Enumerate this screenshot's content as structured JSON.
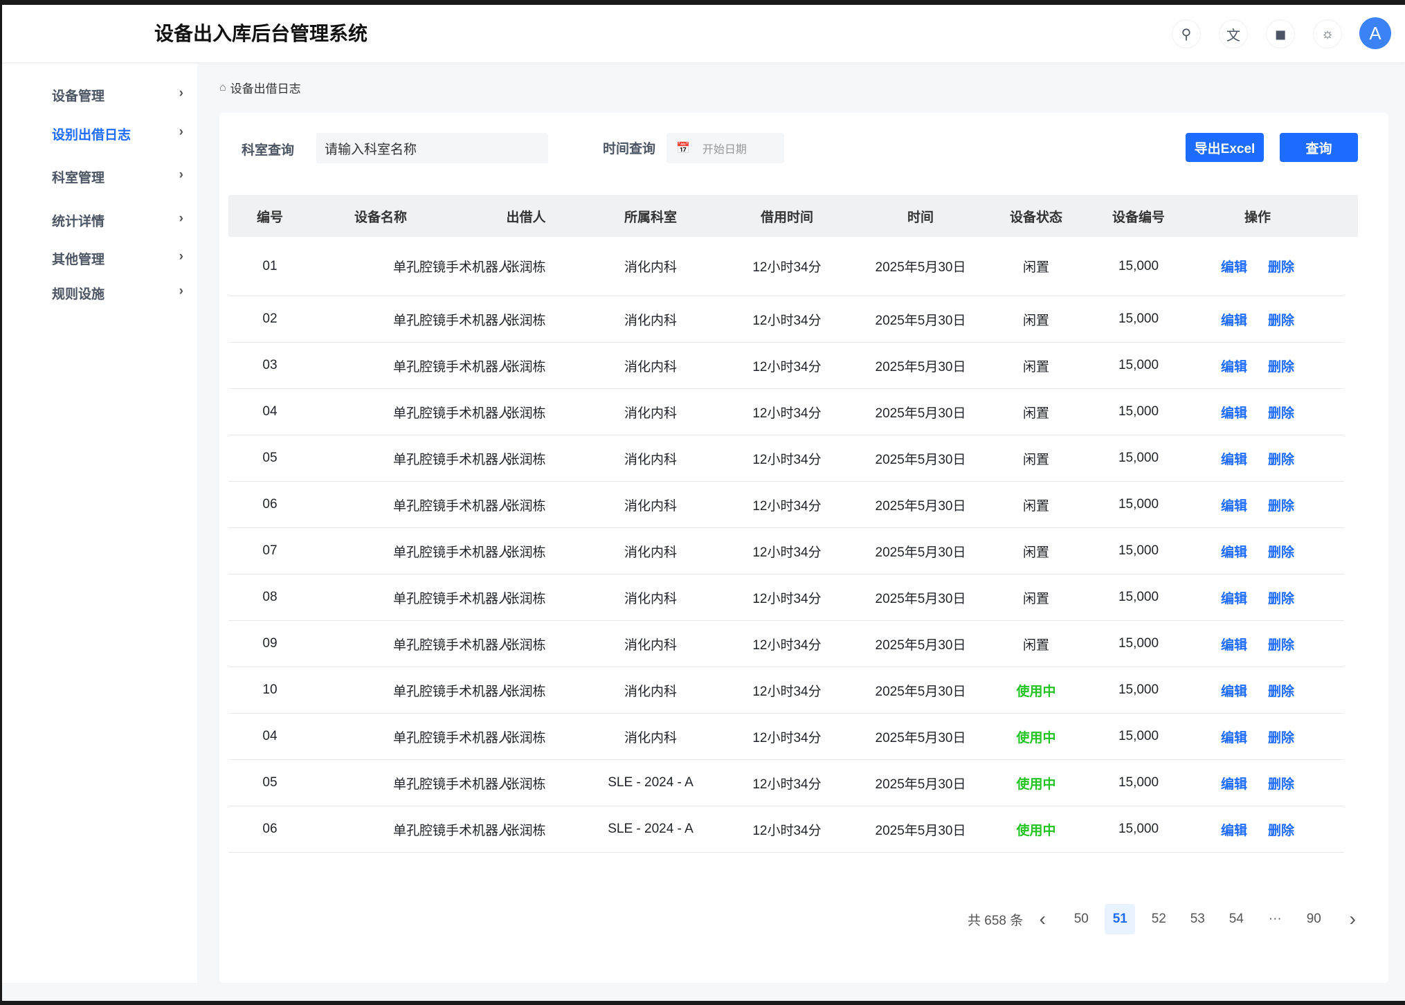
{
  "header": {
    "title": "设备出入库后台管理系统",
    "avatar": "A",
    "icons": [
      "search-icon",
      "translate-icon",
      "bell-icon",
      "sun-icon"
    ]
  },
  "sidebar": {
    "items": [
      {
        "label": "设备管理"
      },
      {
        "label": "设别出借日志",
        "active": true
      },
      {
        "label": "科室管理"
      },
      {
        "label": "统计详情"
      },
      {
        "label": "其他管理"
      },
      {
        "label": "规则设施"
      }
    ]
  },
  "breadcrumb": "设备出借日志",
  "filters": {
    "dept_label": "科室查询",
    "dept_value": "请输入科室名称",
    "time_label": "时间查询",
    "start_placeholder": "开始日期",
    "export": "导出Excel",
    "query": "查询"
  },
  "table": {
    "columns": [
      "编号",
      "设备名称",
      "出借人",
      "所属科室",
      "借用时间",
      "时间",
      "设备状态",
      "设备编号",
      "操作"
    ],
    "edit": "编辑",
    "delete": "删除",
    "rows": [
      [
        "01",
        "单孔腔镜手术机器人",
        "张润栋",
        "消化内科",
        "12小时34分",
        "2025年5月30日",
        "闲置",
        "15,000"
      ],
      [
        "02",
        "单孔腔镜手术机器人",
        "张润栋",
        "消化内科",
        "12小时34分",
        "2025年5月30日",
        "闲置",
        "15,000"
      ],
      [
        "03",
        "单孔腔镜手术机器人",
        "张润栋",
        "消化内科",
        "12小时34分",
        "2025年5月30日",
        "闲置",
        "15,000"
      ],
      [
        "04",
        "单孔腔镜手术机器人",
        "张润栋",
        "消化内科",
        "12小时34分",
        "2025年5月30日",
        "闲置",
        "15,000"
      ],
      [
        "05",
        "单孔腔镜手术机器人",
        "张润栋",
        "消化内科",
        "12小时34分",
        "2025年5月30日",
        "闲置",
        "15,000"
      ],
      [
        "06",
        "单孔腔镜手术机器人",
        "张润栋",
        "消化内科",
        "12小时34分",
        "2025年5月30日",
        "闲置",
        "15,000"
      ],
      [
        "07",
        "单孔腔镜手术机器人",
        "张润栋",
        "消化内科",
        "12小时34分",
        "2025年5月30日",
        "闲置",
        "15,000"
      ],
      [
        "08",
        "单孔腔镜手术机器人",
        "张润栋",
        "消化内科",
        "12小时34分",
        "2025年5月30日",
        "闲置",
        "15,000"
      ],
      [
        "09",
        "单孔腔镜手术机器人",
        "张润栋",
        "消化内科",
        "12小时34分",
        "2025年5月30日",
        "闲置",
        "15,000"
      ],
      [
        "10",
        "单孔腔镜手术机器人",
        "张润栋",
        "消化内科",
        "12小时34分",
        "2025年5月30日",
        "使用中",
        "15,000"
      ],
      [
        "04",
        "单孔腔镜手术机器人",
        "张润栋",
        "消化内科",
        "12小时34分",
        "2025年5月30日",
        "使用中",
        "15,000"
      ],
      [
        "05",
        "单孔腔镜手术机器人",
        "张润栋",
        "SLE - 2024 - A",
        "12小时34分",
        "2025年5月30日",
        "使用中",
        "15,000"
      ],
      [
        "06",
        "单孔腔镜手术机器人",
        "张润栋",
        "SLE - 2024 - A",
        "12小时34分",
        "2025年5月30日",
        "使用中",
        "15,000"
      ]
    ]
  },
  "pagination": {
    "total": "共 658 条",
    "pages": [
      "50",
      "51",
      "52",
      "53",
      "54",
      "···",
      "90"
    ],
    "current": "51"
  },
  "colors": {
    "accent": "#1e6bff",
    "in_use": "#22c322"
  }
}
